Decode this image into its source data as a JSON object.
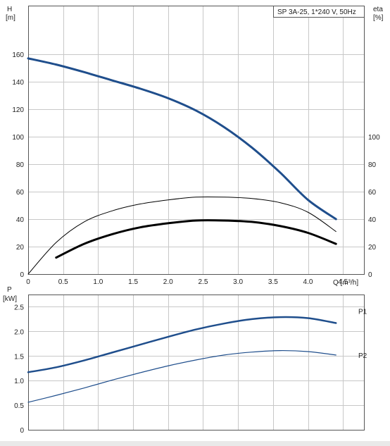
{
  "chart_data": [
    {
      "type": "line",
      "title": "SP 3A-25, 1*240 V, 50Hz",
      "xlabel": "Q [m³/h]",
      "x_tick_labels": [
        "0",
        "0.5",
        "1.0",
        "1.5",
        "2.0",
        "2.5",
        "3.0",
        "3.5",
        "4.0",
        "4.5"
      ],
      "xlim": [
        0,
        4.8
      ],
      "grid": true,
      "left_axis": {
        "label": "H",
        "unit": "[m]",
        "ylim": [
          0,
          180
        ],
        "ticks": [
          0,
          20,
          40,
          60,
          80,
          100,
          120,
          140,
          160
        ]
      },
      "right_axis": {
        "label": "eta",
        "unit": "[%]",
        "ylim": [
          0,
          180
        ],
        "ticks": [
          0,
          20,
          40,
          60,
          80,
          100
        ]
      },
      "series": [
        {
          "color": "#1f4e8c",
          "axis": "left",
          "x": [
            0,
            0.4,
            0.8,
            1.2,
            1.6,
            2.0,
            2.4,
            2.8,
            3.2,
            3.6,
            4.0,
            4.4
          ],
          "y": [
            157,
            152.5,
            147,
            141,
            135,
            128,
            119,
            107,
            92,
            74,
            54,
            40
          ]
        },
        {
          "color": "#000000",
          "axis": "right",
          "x": [
            0,
            0.4,
            0.8,
            1.2,
            1.6,
            2.0,
            2.4,
            2.8,
            3.2,
            3.6,
            4.0,
            4.4
          ],
          "y": [
            0,
            23,
            38,
            46,
            51,
            54,
            56,
            56,
            55,
            52,
            45,
            31
          ]
        },
        {
          "color": "#000000",
          "axis": "right",
          "x": [
            0.4,
            0.8,
            1.2,
            1.6,
            2.0,
            2.4,
            2.8,
            3.2,
            3.6,
            4.0,
            4.4
          ],
          "y": [
            12,
            22,
            29,
            34,
            37,
            39,
            39,
            38,
            35,
            30,
            22
          ]
        }
      ]
    },
    {
      "type": "line",
      "xlim": [
        0,
        4.8
      ],
      "grid": true,
      "left_axis": {
        "label": "P",
        "unit": "[kW]",
        "ylim": [
          0,
          2.75
        ],
        "ticks": [
          0,
          0.5,
          1.0,
          1.5,
          2.0,
          2.5
        ],
        "tick_labels": [
          "0",
          "0.5",
          "1.0",
          "1.5",
          "2.0",
          "2.5"
        ]
      },
      "series": [
        {
          "name": "P1",
          "color": "#1f4e8c",
          "x": [
            0,
            0.4,
            0.8,
            1.2,
            1.6,
            2.0,
            2.4,
            2.8,
            3.2,
            3.6,
            4.0,
            4.4
          ],
          "y": [
            1.17,
            1.27,
            1.41,
            1.57,
            1.73,
            1.89,
            2.04,
            2.16,
            2.25,
            2.29,
            2.27,
            2.17
          ]
        },
        {
          "name": "P2",
          "color": "#1f4e8c",
          "x": [
            0,
            0.4,
            0.8,
            1.2,
            1.6,
            2.0,
            2.4,
            2.8,
            3.2,
            3.6,
            4.0,
            4.4
          ],
          "y": [
            0.56,
            0.7,
            0.85,
            1.01,
            1.16,
            1.3,
            1.42,
            1.52,
            1.58,
            1.61,
            1.59,
            1.52
          ]
        }
      ]
    }
  ]
}
